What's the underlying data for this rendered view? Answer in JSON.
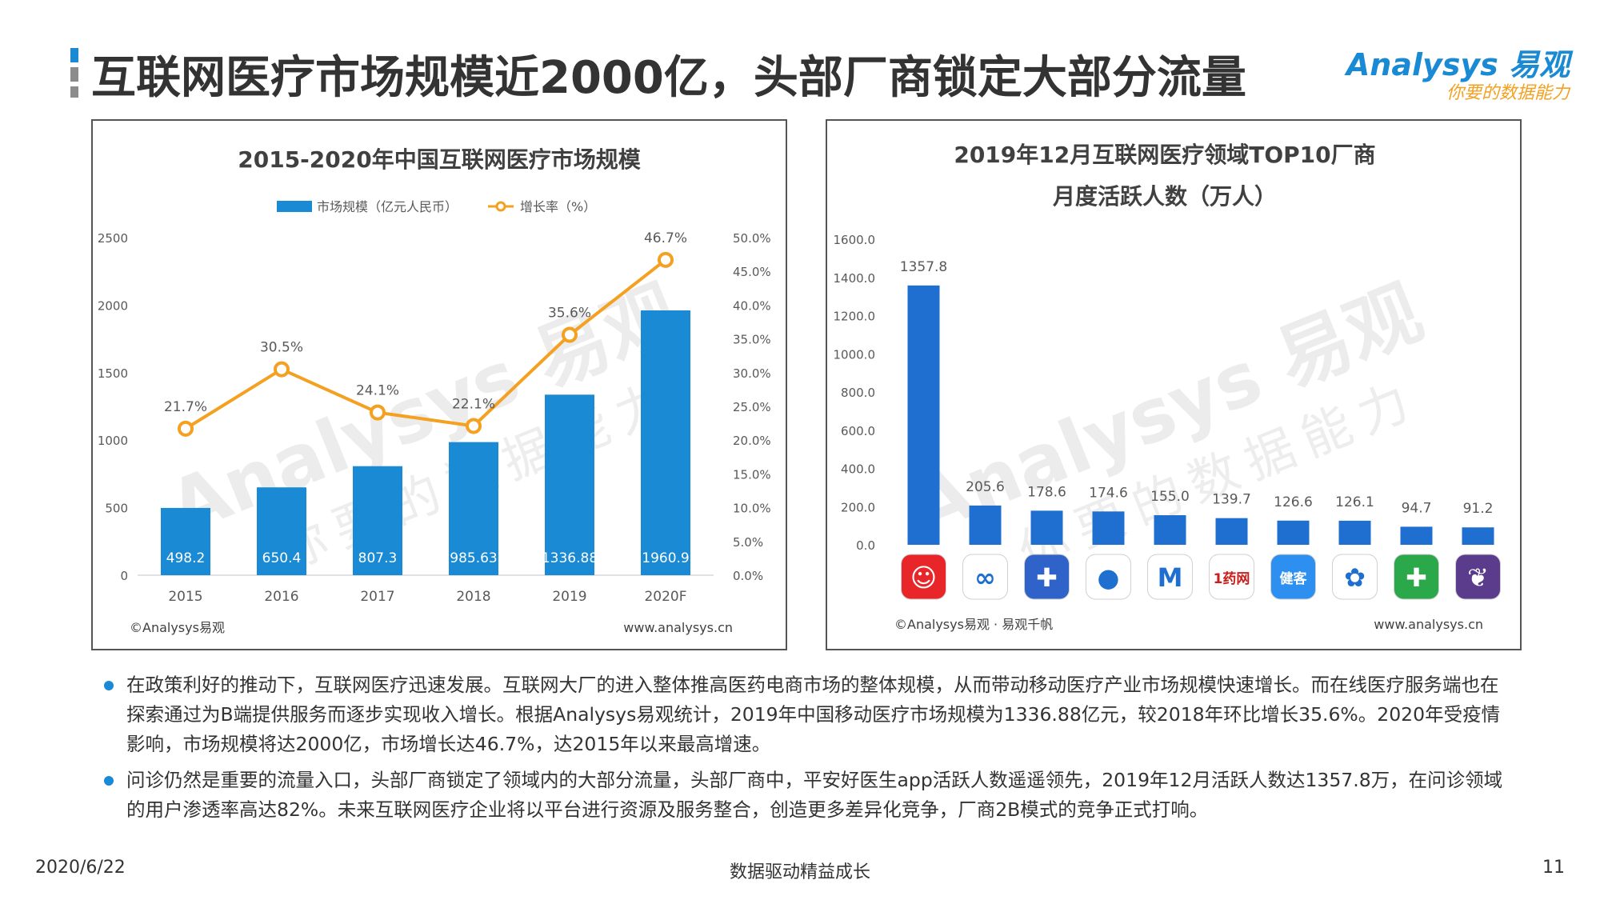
{
  "page": {
    "title": "互联网医疗市场规模近2000亿，头部厂商锁定大部分流量",
    "logo_main": "Analysys 易观",
    "logo_sub": "你要的数据能力",
    "footer_date": "2020/6/22",
    "footer_center": "数据驱动精益成长",
    "footer_page": "11",
    "accent": "#1a8ad4",
    "orange": "#f4a020"
  },
  "chart_data": [
    {
      "type": "bar",
      "title": "2015-2020年中国互联网医疗市场规模",
      "categories": [
        "2015",
        "2016",
        "2017",
        "2018",
        "2019",
        "2020F"
      ],
      "series": [
        {
          "name": "市场规模（亿元人民币）",
          "type": "bar",
          "axis": "left",
          "color": "#1a8ad4",
          "values": [
            498.2,
            650.4,
            807.3,
            985.63,
            1336.88,
            1960.9
          ],
          "labels": [
            "498.2",
            "650.4",
            "807.3",
            "985.63",
            "1336.88",
            "1960.9"
          ]
        },
        {
          "name": "增长率（%）",
          "type": "line",
          "axis": "right",
          "color": "#f4a020",
          "values": [
            21.7,
            30.5,
            24.1,
            22.1,
            35.6,
            46.7
          ],
          "labels": [
            "21.7%",
            "30.5%",
            "24.1%",
            "22.1%",
            "35.6%",
            "46.7%"
          ]
        }
      ],
      "ylim_left": [
        0,
        2500
      ],
      "yticks_left": [
        "0",
        "500",
        "1000",
        "1500",
        "2000",
        "2500"
      ],
      "ylim_right": [
        0,
        50
      ],
      "yticks_right": [
        "0.0%",
        "5.0%",
        "10.0%",
        "15.0%",
        "20.0%",
        "25.0%",
        "30.0%",
        "35.0%",
        "40.0%",
        "45.0%",
        "50.0%"
      ],
      "legend_position": "top",
      "source_left": "©Analysys易观",
      "source_right": "www.analysys.cn",
      "watermark_main": "Analysys 易观",
      "watermark_sub": "你要的数据能力"
    },
    {
      "type": "bar",
      "title_lines": [
        "2019年12月互联网医疗领域TOP10厂商",
        "月度活跃人数（万人）"
      ],
      "values": [
        1357.8,
        205.6,
        178.6,
        174.6,
        155.0,
        139.7,
        126.6,
        126.1,
        94.7,
        91.2
      ],
      "labels": [
        "1357.8",
        "205.6",
        "178.6",
        "174.6",
        "155.0",
        "139.7",
        "126.6",
        "126.1",
        "94.7",
        "91.2"
      ],
      "ylim": [
        0,
        1600
      ],
      "yticks": [
        "0.0",
        "200.0",
        "400.0",
        "600.0",
        "800.0",
        "1000.0",
        "1200.0",
        "1400.0",
        "1600.0"
      ],
      "bar_color": "#1f6fd1",
      "app_icons": [
        {
          "name": "pingan-haoyisheng-icon",
          "bg": "#e8262a",
          "glyph": "☺",
          "text": ""
        },
        {
          "name": "weiyi-icon",
          "bg": "#ffffff",
          "glyph": "∞",
          "text": ""
        },
        {
          "name": "haodaifu-icon",
          "bg": "#2f63c9",
          "glyph": "✚",
          "text": ""
        },
        {
          "name": "chunyu-icon",
          "bg": "#ffffff",
          "glyph": "●",
          "text": ""
        },
        {
          "name": "yilian-icon",
          "bg": "#ffffff",
          "glyph": "M",
          "text": ""
        },
        {
          "name": "1yaowang-icon",
          "bg": "#ffffff",
          "glyph": "",
          "text": "1药网"
        },
        {
          "name": "jiankeyun-icon",
          "bg": "#2d8ff0",
          "glyph": "",
          "text": "健客"
        },
        {
          "name": "meiyou-icon",
          "bg": "#ffffff",
          "glyph": "✿",
          "text": ""
        },
        {
          "name": "jiankang-icon",
          "bg": "#2aa84a",
          "glyph": "✚",
          "text": ""
        },
        {
          "name": "zhiyun-icon",
          "bg": "#5a3b8c",
          "glyph": "❦",
          "text": ""
        }
      ],
      "source_left": "©Analysys易观 · 易观千帆",
      "source_right": "www.analysys.cn",
      "watermark_main": "Analysys 易观",
      "watermark_sub": "你要的数据能力"
    }
  ],
  "bullets": [
    "在政策利好的推动下，互联网医疗迅速发展。互联网大厂的进入整体推高医药电商市场的整体规模，从而带动移动医疗产业市场规模快速增长。而在线医疗服务端也在探索通过为B端提供服务而逐步实现收入增长。根据Analysys易观统计，2019年中国移动医疗市场规模为1336.88亿元，较2018年环比增长35.6%。2020年受疫情影响，市场规模将达2000亿，市场增长达46.7%，达2015年以来最高增速。",
    "问诊仍然是重要的流量入口，头部厂商锁定了领域内的大部分流量，头部厂商中，平安好医生app活跃人数遥遥领先，2019年12月活跃人数达1357.8万，在问诊领域的用户渗透率高达82%。未来互联网医疗企业将以平台进行资源及服务整合，创造更多差异化竞争，厂商2B模式的竞争正式打响。"
  ]
}
